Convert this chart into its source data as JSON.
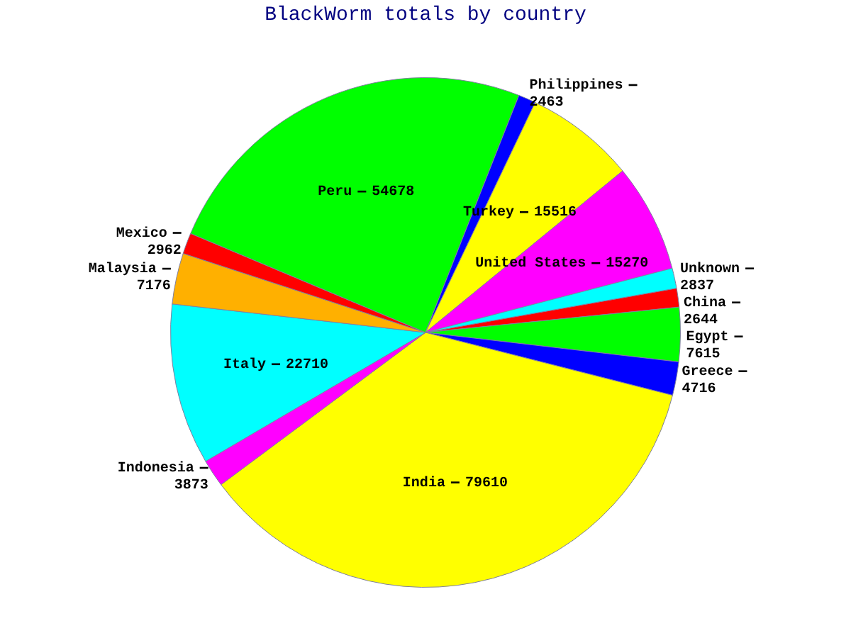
{
  "chart_data": {
    "type": "pie",
    "title": "BlackWorm totals by country",
    "categories": [
      "China",
      "Egypt",
      "Greece",
      "India",
      "Indonesia",
      "Italy",
      "Malaysia",
      "Mexico",
      "Peru",
      "Philippines",
      "Turkey",
      "United States",
      "Unknown"
    ],
    "values": [
      2644,
      7615,
      4716,
      79610,
      3873,
      22710,
      7176,
      2962,
      54678,
      2463,
      15516,
      15270,
      2837
    ],
    "colors": [
      "#ff0000",
      "#00ff00",
      "#0000ff",
      "#ffff00",
      "#ff00ff",
      "#00ffff",
      "#ffb000",
      "#ff0000",
      "#00ff00",
      "#0000ff",
      "#ffff00",
      "#ff00ff",
      "#00ffff"
    ],
    "data_labels": true,
    "legend": false
  }
}
